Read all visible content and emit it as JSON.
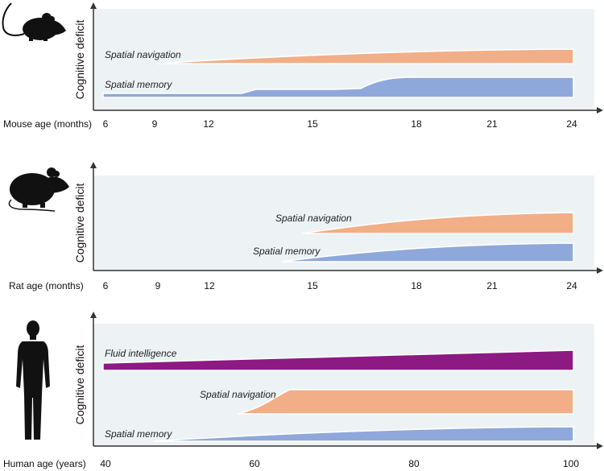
{
  "colors": {
    "panel_bg": "#edf3f5",
    "navigation": "#f2ae86",
    "memory": "#8fa8db",
    "fluid": "#8c1a82",
    "axis": "#333333",
    "silhouette": "#111111"
  },
  "panels": [
    {
      "species": "mouse",
      "icon": "mouse-silhouette-icon",
      "y_label": "Cognitive deficit",
      "x_label": "Mouse age (months)",
      "ticks": [
        "6",
        "9",
        "12",
        "15",
        "18",
        "21",
        "24"
      ],
      "bands": [
        {
          "label": "Spatial navigation",
          "series": "navigation"
        },
        {
          "label": "Spatial memory",
          "series": "memory"
        }
      ]
    },
    {
      "species": "rat",
      "icon": "rat-silhouette-icon",
      "y_label": "Cognitive deficit",
      "x_label": "Rat age (months)",
      "ticks": [
        "6",
        "9",
        "12",
        "15",
        "18",
        "21",
        "24"
      ],
      "bands": [
        {
          "label": "Spatial navigation",
          "series": "navigation"
        },
        {
          "label": "Spatial memory",
          "series": "memory"
        }
      ]
    },
    {
      "species": "human",
      "icon": "human-silhouette-icon",
      "y_label": "Cognitive deficit",
      "x_label": "Human age (years)",
      "ticks": [
        "40",
        "60",
        "80",
        "100"
      ],
      "bands": [
        {
          "label": "Fluid intelligence",
          "series": "fluid"
        },
        {
          "label": "Spatial navigation",
          "series": "navigation"
        },
        {
          "label": "Spatial memory",
          "series": "memory"
        }
      ]
    }
  ]
}
